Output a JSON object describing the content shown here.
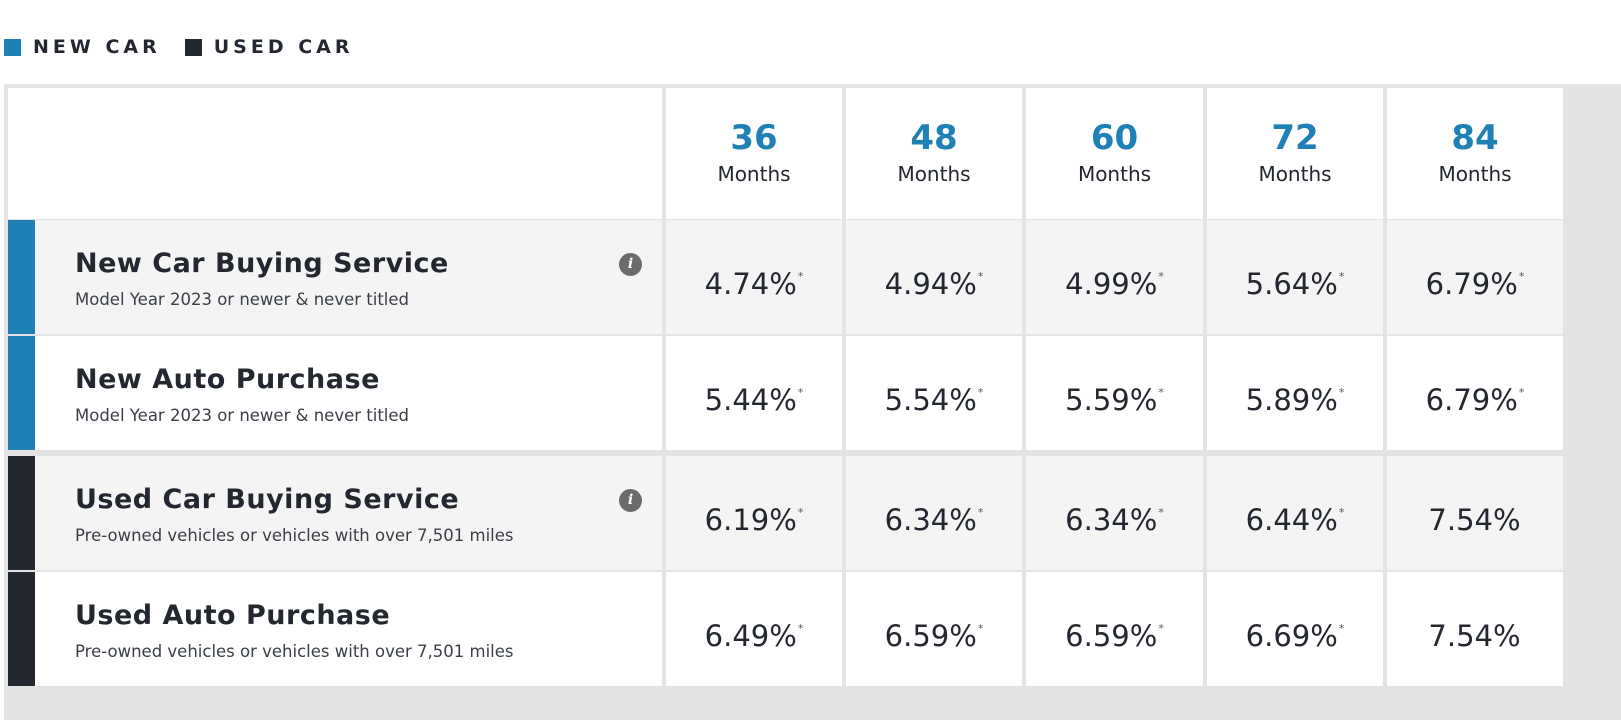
{
  "legend": [
    {
      "label": "NEW CAR",
      "color": "#1f80b5"
    },
    {
      "label": "USED CAR",
      "color": "#23272f"
    }
  ],
  "colors": {
    "term_accent": "#1f80b5",
    "new_car": "#1f80b5",
    "used_car": "#23272f"
  },
  "terms": [
    {
      "number": "36",
      "unit": "Months"
    },
    {
      "number": "48",
      "unit": "Months"
    },
    {
      "number": "60",
      "unit": "Months"
    },
    {
      "number": "72",
      "unit": "Months"
    },
    {
      "number": "84",
      "unit": "Months"
    }
  ],
  "rows": [
    {
      "title": "New Car Buying Service",
      "subtitle": "Model Year 2023 or newer & never titled",
      "group": "new",
      "info_icon": "info-icon",
      "rates": [
        {
          "value": "4.74%",
          "note": "*"
        },
        {
          "value": "4.94%",
          "note": "*"
        },
        {
          "value": "4.99%",
          "note": "*"
        },
        {
          "value": "5.64%",
          "note": "*"
        },
        {
          "value": "6.79%",
          "note": "*"
        }
      ]
    },
    {
      "title": "New Auto Purchase",
      "subtitle": "Model Year 2023 or newer & never titled",
      "group": "new",
      "rates": [
        {
          "value": "5.44%",
          "note": "*"
        },
        {
          "value": "5.54%",
          "note": "*"
        },
        {
          "value": "5.59%",
          "note": "*"
        },
        {
          "value": "5.89%",
          "note": "*"
        },
        {
          "value": "6.79%",
          "note": "*"
        }
      ]
    },
    {
      "title": "Used Car Buying Service",
      "subtitle": "Pre-owned vehicles or vehicles with over 7,501 miles",
      "group": "used",
      "info_icon": "info-icon",
      "rates": [
        {
          "value": "6.19%",
          "note": "*"
        },
        {
          "value": "6.34%",
          "note": "*"
        },
        {
          "value": "6.34%",
          "note": "*"
        },
        {
          "value": "6.44%",
          "note": "*"
        },
        {
          "value": "7.54%",
          "note": ""
        }
      ]
    },
    {
      "title": "Used Auto Purchase",
      "subtitle": "Pre-owned vehicles or vehicles with over 7,501 miles",
      "group": "used",
      "rates": [
        {
          "value": "6.49%",
          "note": "*"
        },
        {
          "value": "6.59%",
          "note": "*"
        },
        {
          "value": "6.59%",
          "note": "*"
        },
        {
          "value": "6.69%",
          "note": "*"
        },
        {
          "value": "7.54%",
          "note": ""
        }
      ]
    }
  ]
}
